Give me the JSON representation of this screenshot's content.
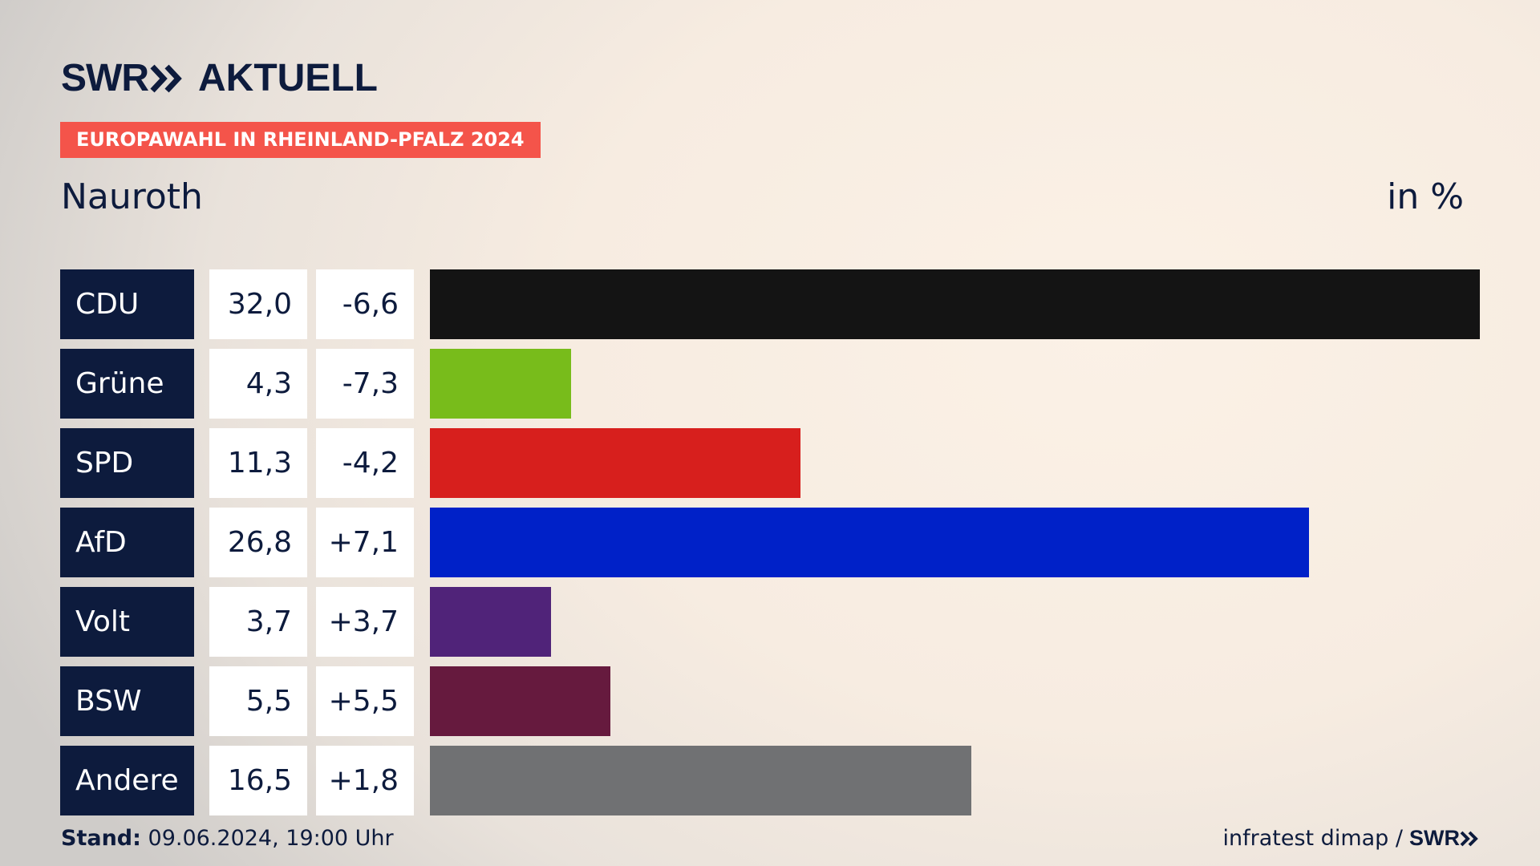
{
  "header": {
    "logo_left": "SWR",
    "logo_right": "AKTUELL",
    "banner": "EUROPAWAHL IN RHEINLAND-PFALZ 2024",
    "place": "Nauroth",
    "unit": "in %"
  },
  "footer": {
    "stand_label": "Stand:",
    "stand_value": "09.06.2024, 19:00 Uhr",
    "source": "infratest dimap /",
    "brand": "SWR"
  },
  "chart_data": {
    "type": "bar",
    "orientation": "horizontal",
    "categories": [
      "CDU",
      "Grüne",
      "SPD",
      "AfD",
      "Volt",
      "BSW",
      "Andere"
    ],
    "values": [
      32.0,
      4.3,
      11.3,
      26.8,
      3.7,
      5.5,
      16.5
    ],
    "values_label": [
      "32,0",
      "4,3",
      "11,3",
      "26,8",
      "3,7",
      "5,5",
      "16,5"
    ],
    "diffs_label": [
      "-6,6",
      "-7,3",
      "-4,2",
      "+7,1",
      "+3,7",
      "+5,5",
      "+1,8"
    ],
    "diffs": [
      -6.6,
      -7.3,
      -4.2,
      7.1,
      3.7,
      5.5,
      1.8
    ],
    "colors": [
      "#141414",
      "#78bc1b",
      "#d71f1d",
      "#0021c8",
      "#502379",
      "#661a3e",
      "#707173"
    ],
    "xlim": [
      0,
      32.0
    ],
    "grid": false
  },
  "theme": {
    "navy": "#0d1b3d",
    "accent": "#f4544a"
  }
}
